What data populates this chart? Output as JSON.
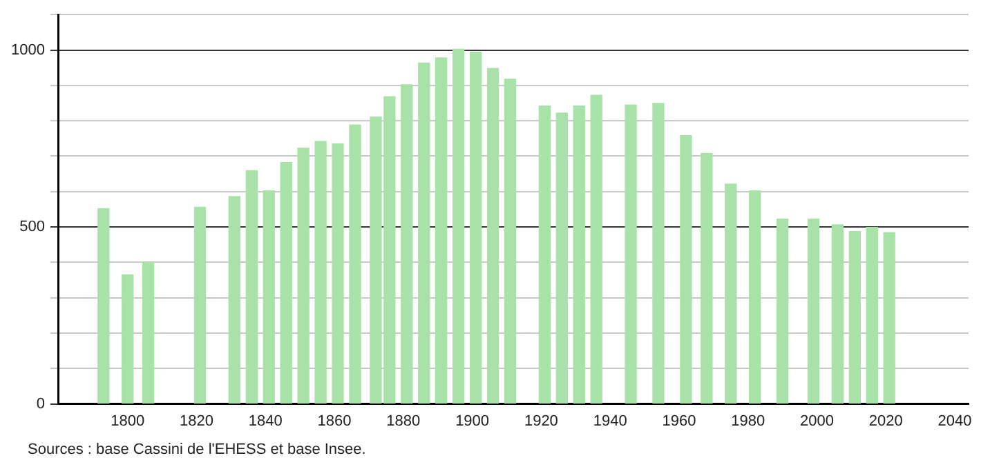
{
  "chart_data": {
    "type": "bar",
    "color": "#a8e2a8",
    "x": [
      1793,
      1800,
      1806,
      1821,
      1831,
      1836,
      1841,
      1846,
      1851,
      1856,
      1861,
      1866,
      1872,
      1876,
      1881,
      1886,
      1891,
      1896,
      1901,
      1906,
      1911,
      1921,
      1926,
      1931,
      1936,
      1946,
      1954,
      1962,
      1968,
      1975,
      1982,
      1990,
      1999,
      2006,
      2011,
      2016,
      2021
    ],
    "values": [
      552,
      365,
      400,
      556,
      586,
      659,
      602,
      682,
      723,
      742,
      735,
      788,
      811,
      868,
      902,
      963,
      978,
      1002,
      994,
      948,
      918,
      842,
      822,
      842,
      872,
      845,
      849,
      758,
      708,
      621,
      602,
      522,
      522,
      506,
      487,
      499,
      484
    ],
    "xlim": [
      1780,
      2044
    ],
    "xticks": [
      1800,
      1820,
      1840,
      1860,
      1880,
      1900,
      1920,
      1940,
      1960,
      1980,
      2000,
      2020,
      2040
    ],
    "ylim": [
      0,
      1100
    ],
    "yticks": [
      0,
      {
        "value": 100,
        "label": null
      },
      {
        "value": 200,
        "label": null
      },
      {
        "value": 300,
        "label": null
      },
      {
        "value": 400,
        "label": null
      },
      500,
      {
        "value": 600,
        "label": null
      },
      {
        "value": 700,
        "label": null
      },
      {
        "value": 800,
        "label": null
      },
      {
        "value": 900,
        "label": null
      },
      1000,
      {
        "value": 1100,
        "label": null
      }
    ],
    "grid": "y",
    "annotations": [
      "Sources : base Cassini de l'EHESS et base Insee."
    ]
  }
}
